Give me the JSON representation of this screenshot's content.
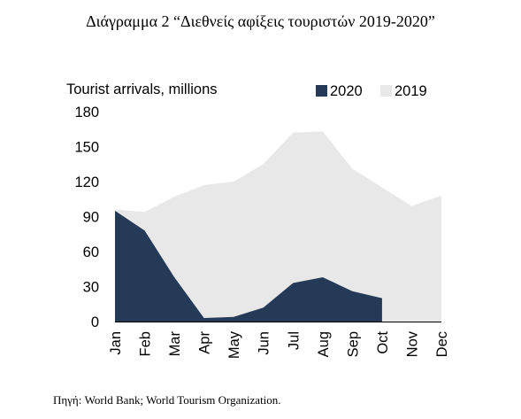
{
  "figure": {
    "title": "Διάγραμμα 2 “Διεθνείς αφίξεις τουριστών 2019-2020”",
    "source": "Πηγή: World Bank; World Tourism Organization."
  },
  "chart_data": {
    "type": "area",
    "ylabel": "Tourist arrivals, millions",
    "xlabel": "",
    "categories": [
      "Jan",
      "Feb",
      "Mar",
      "Apr",
      "May",
      "Jun",
      "Jul",
      "Aug",
      "Sep",
      "Oct",
      "Nov",
      "Dec"
    ],
    "yticks": [
      0,
      30,
      60,
      90,
      120,
      150,
      180
    ],
    "ylim": [
      0,
      180
    ],
    "grid": false,
    "legend_position": "top-right",
    "series": [
      {
        "name": "2019",
        "color": "#e8e8e8",
        "values": [
          96,
          94,
          107,
          117,
          120,
          135,
          162,
          163,
          131,
          115,
          99,
          108
        ]
      },
      {
        "name": "2020",
        "color": "#243a56",
        "values": [
          95,
          78,
          38,
          3,
          4,
          12,
          33,
          38,
          26,
          20,
          null,
          null
        ]
      }
    ]
  }
}
